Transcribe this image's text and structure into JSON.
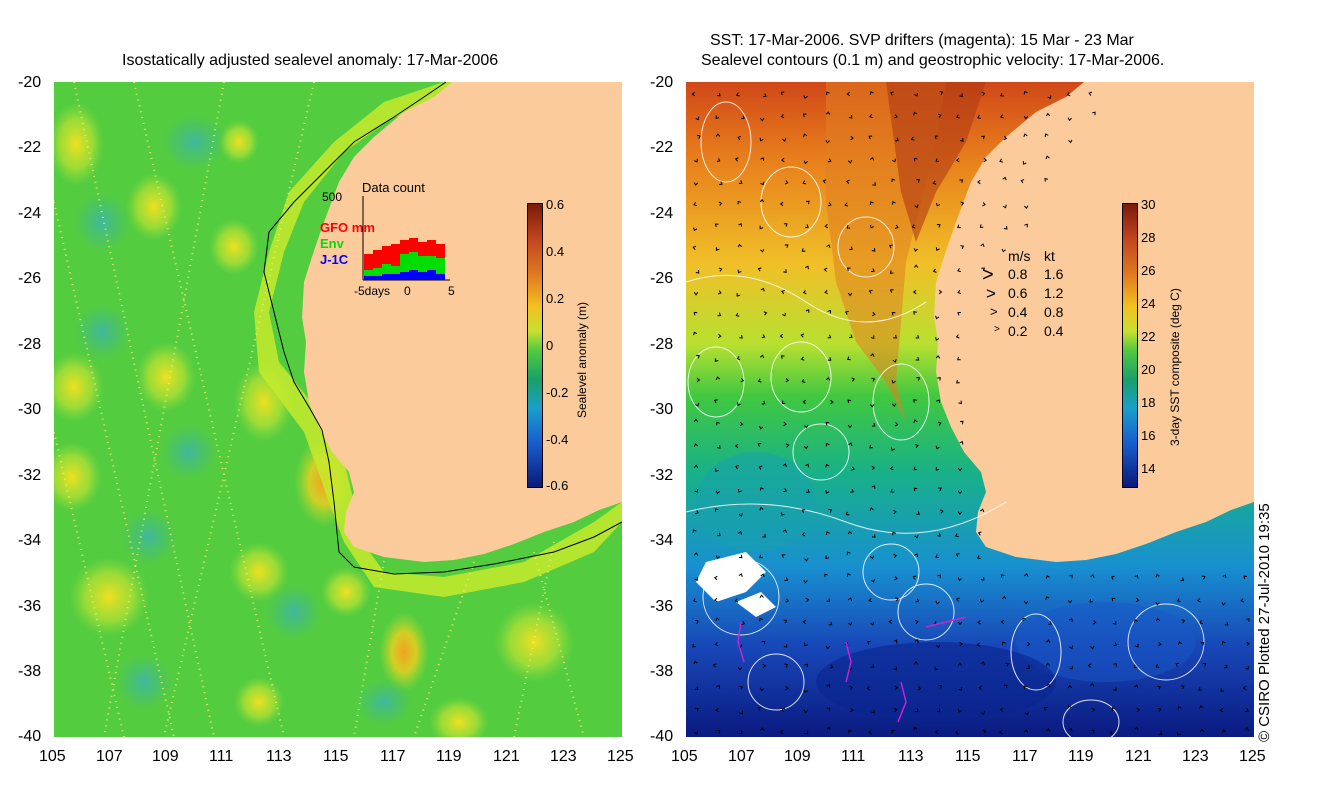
{
  "left_panel": {
    "title": "Isostatically adjusted sealevel anomaly: 17-Mar-2006",
    "y_ticks": [
      "-20",
      "-22",
      "-24",
      "-26",
      "-28",
      "-30",
      "-32",
      "-34",
      "-36",
      "-38",
      "-40"
    ],
    "x_ticks": [
      "105",
      "107",
      "109",
      "111",
      "113",
      "115",
      "117",
      "119",
      "121",
      "123",
      "125"
    ],
    "colorbar": {
      "label": "Sealevel anomaly (m)",
      "ticks": [
        "0.6",
        "0.4",
        "0.2",
        "0",
        "-0.2",
        "-0.4",
        "-0.6"
      ]
    },
    "inset": {
      "title": "Data count",
      "y_max_label": "500",
      "legend": [
        {
          "label": "GFO mm",
          "color": "#ff0000"
        },
        {
          "label": "Env",
          "color": "#00dd00"
        },
        {
          "label": "J-1C",
          "color": "#0000ff"
        }
      ],
      "x_ticks": [
        "-5days",
        "0",
        "5"
      ]
    }
  },
  "right_panel": {
    "title_line1": "SST: 17-Mar-2006. SVP drifters (magenta): 15 Mar - 23 Mar",
    "title_line2": "Sealevel contours (0.1 m) and geostrophic velocity: 17-Mar-2006.",
    "y_ticks": [
      "-20",
      "-22",
      "-24",
      "-26",
      "-28",
      "-30",
      "-32",
      "-34",
      "-36",
      "-38",
      "-40"
    ],
    "x_ticks": [
      "105",
      "107",
      "109",
      "111",
      "113",
      "115",
      "117",
      "119",
      "121",
      "123",
      "125"
    ],
    "colorbar": {
      "label": "3-day SST composite (deg C)",
      "ticks": [
        "30",
        "28",
        "26",
        "24",
        "22",
        "20",
        "18",
        "16",
        "14"
      ]
    },
    "velocity_legend": {
      "header_ms": "m/s",
      "header_kt": "kt",
      "rows": [
        {
          "ms": "0.8",
          "kt": "1.6"
        },
        {
          "ms": "0.6",
          "kt": "1.2"
        },
        {
          "ms": "0.4",
          "kt": "0.8"
        },
        {
          "ms": "0.2",
          "kt": "0.4"
        }
      ]
    }
  },
  "credit": "© CSIRO Plotted 27-Jul-2010 19:35",
  "colors": {
    "land": "#fbcb9c",
    "ocean_left": "#5fd23c",
    "sst_warm": "#c0441f",
    "sst_cold": "#1c3fb0"
  }
}
